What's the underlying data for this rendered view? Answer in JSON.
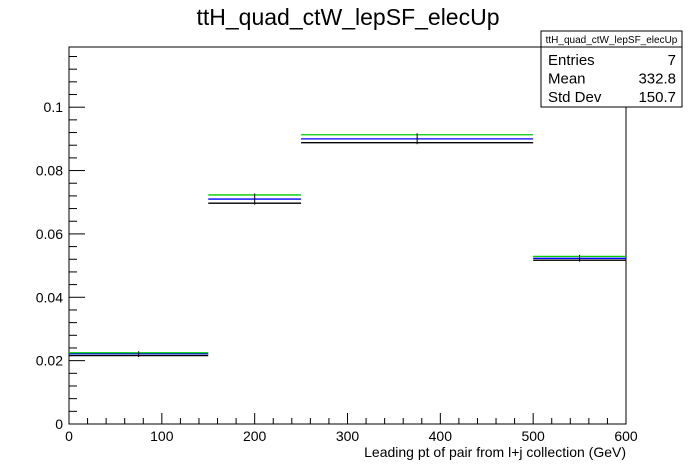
{
  "chart_data": {
    "type": "step-histogram",
    "title": "ttH_quad_ctW_lepSF_elecUp",
    "xlabel": "Leading pt of pair from l+j collection (GeV)",
    "ylabel": "",
    "xlim": [
      0,
      600
    ],
    "ylim": [
      0,
      0.119
    ],
    "grid": false,
    "x_ticks": [
      0,
      100,
      200,
      300,
      400,
      500,
      600
    ],
    "x_tick_labels": [
      "0",
      "100",
      "200",
      "300",
      "400",
      "500",
      "600"
    ],
    "y_ticks": [
      0,
      0.02,
      0.04,
      0.06,
      0.08,
      0.1
    ],
    "y_tick_labels": [
      "0",
      "0.02",
      "0.04",
      "0.06",
      "0.08",
      "0.1"
    ],
    "bins": [
      [
        0,
        150
      ],
      [
        150,
        250
      ],
      [
        250,
        500
      ],
      [
        500,
        600
      ]
    ],
    "series": [
      {
        "color": "#0000ff",
        "values": [
          0.0222,
          0.071,
          0.09,
          0.0523
        ]
      },
      {
        "color": "#000000",
        "values": [
          0.0216,
          0.0697,
          0.0888,
          0.0517
        ]
      },
      {
        "color": "#00cc00",
        "values": [
          0.0225,
          0.0723,
          0.0913,
          0.0529
        ]
      }
    ],
    "stats_box": {
      "title": "ttH_quad_ctW_lepSF_elecUp",
      "rows": [
        {
          "label": "Entries",
          "value": "7"
        },
        {
          "label": "Mean",
          "value": "332.8"
        },
        {
          "label": "Std Dev",
          "value": "150.7"
        }
      ]
    }
  }
}
